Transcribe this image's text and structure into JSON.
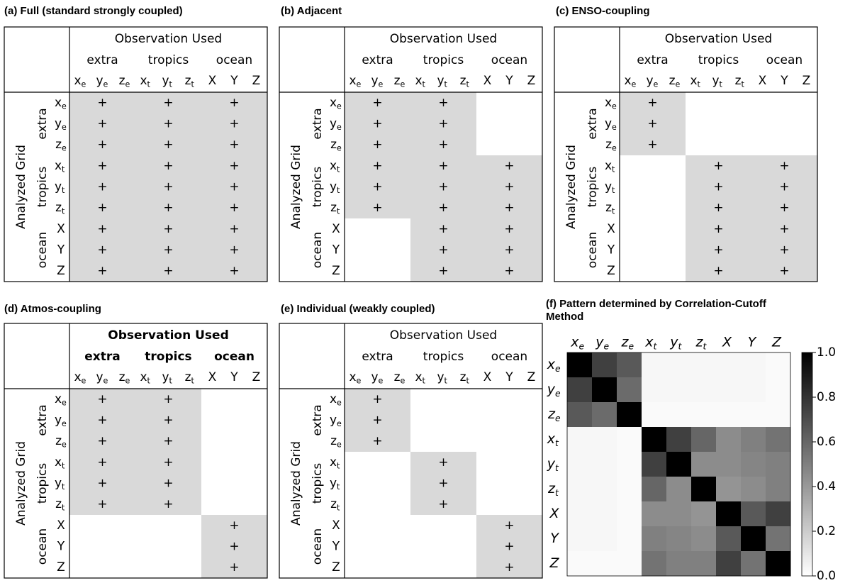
{
  "variables": [
    {
      "base": "x",
      "sub": "e"
    },
    {
      "base": "y",
      "sub": "e"
    },
    {
      "base": "z",
      "sub": "e"
    },
    {
      "base": "x",
      "sub": "t"
    },
    {
      "base": "y",
      "sub": "t"
    },
    {
      "base": "z",
      "sub": "t"
    },
    {
      "base": "X"
    },
    {
      "base": "Y"
    },
    {
      "base": "Z"
    }
  ],
  "groups": [
    "extra",
    "tropics",
    "ocean"
  ],
  "column_header": "Observation Used",
  "row_header": "Analyzed Grid",
  "marker": "+",
  "panels": [
    {
      "title": "(a) Full (standard strongly coupled)",
      "coupling": [
        [
          true,
          true,
          true
        ],
        [
          true,
          true,
          true
        ],
        [
          true,
          true,
          true
        ]
      ]
    },
    {
      "title": "(b) Adjacent",
      "coupling": [
        [
          true,
          true,
          false
        ],
        [
          true,
          true,
          true
        ],
        [
          false,
          true,
          true
        ]
      ]
    },
    {
      "title": "(c) ENSO-coupling",
      "coupling": [
        [
          true,
          false,
          false
        ],
        [
          false,
          true,
          true
        ],
        [
          false,
          true,
          true
        ]
      ]
    },
    {
      "title": "(d) Atmos-coupling",
      "coupling": [
        [
          true,
          true,
          false
        ],
        [
          true,
          true,
          false
        ],
        [
          false,
          false,
          true
        ]
      ]
    },
    {
      "title": "(e) Individual (weakly coupled)",
      "coupling": [
        [
          true,
          false,
          false
        ],
        [
          false,
          true,
          false
        ],
        [
          false,
          false,
          true
        ]
      ]
    }
  ],
  "chart_data": {
    "type": "heatmap",
    "title": "(f) Pattern determined by Correlation-Cutoff Method",
    "colormap": [
      "#ffffff",
      "#000000"
    ],
    "values": [
      [
        1,
        0.75,
        0.65,
        0.03,
        0.03,
        0.03,
        0.03,
        0.03,
        0.02
      ],
      [
        0.75,
        1,
        0.58,
        0.03,
        0.03,
        0.03,
        0.03,
        0.03,
        0.02
      ],
      [
        0.65,
        0.58,
        1,
        0.02,
        0.02,
        0.02,
        0.02,
        0.02,
        0.02
      ],
      [
        0.03,
        0.03,
        0.02,
        1,
        0.75,
        0.6,
        0.45,
        0.5,
        0.55
      ],
      [
        0.03,
        0.03,
        0.02,
        0.75,
        1,
        0.45,
        0.45,
        0.48,
        0.5
      ],
      [
        0.03,
        0.03,
        0.02,
        0.6,
        0.45,
        1,
        0.42,
        0.45,
        0.5
      ],
      [
        0.03,
        0.03,
        0.02,
        0.45,
        0.45,
        0.42,
        1,
        0.65,
        0.75
      ],
      [
        0.03,
        0.03,
        0.02,
        0.5,
        0.48,
        0.45,
        0.65,
        1,
        0.55
      ],
      [
        0.02,
        0.02,
        0.02,
        0.55,
        0.5,
        0.5,
        0.75,
        0.55,
        1
      ]
    ],
    "clim": [
      0,
      1
    ],
    "cticks": [
      {
        "value": 0,
        "label": "0.0"
      },
      0.2,
      0.4,
      0.6,
      0.8,
      {
        "value": 1,
        "label": "1.0"
      }
    ]
  }
}
